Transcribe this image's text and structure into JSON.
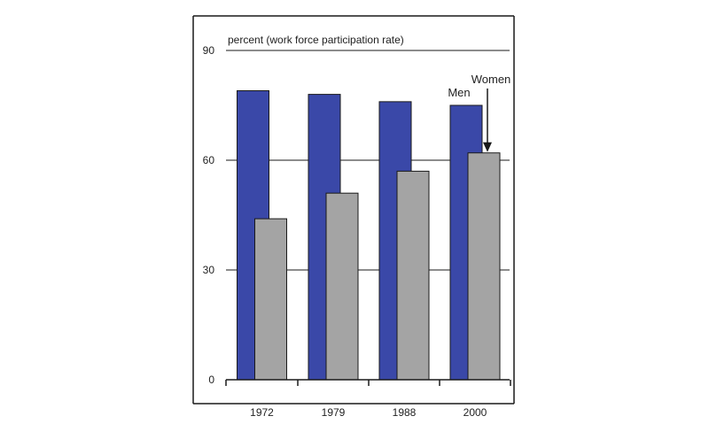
{
  "chart_data": {
    "type": "bar",
    "title": "",
    "ylabel": "percent (work force participation rate)",
    "xlabel": "",
    "categories": [
      "1972",
      "1979",
      "1988",
      "2000"
    ],
    "ylim": [
      0,
      90
    ],
    "yticks": [
      "0",
      "30",
      "60",
      "90"
    ],
    "grid": true,
    "series": [
      {
        "name": "Men",
        "values": [
          79,
          78,
          76,
          75
        ]
      },
      {
        "name": "Women",
        "values": [
          44,
          51,
          57,
          62
        ]
      }
    ],
    "annotations": [
      {
        "label": "Men",
        "series": "Men",
        "category": "2000"
      },
      {
        "label": "Women",
        "series": "Women",
        "category": "2000",
        "arrow": true
      }
    ]
  },
  "colors": {
    "men": "#3a48a8",
    "women": "#a4a4a4",
    "bar_outline": "#1a1a1a",
    "axis": "#1a1a1a",
    "text": "#222222"
  }
}
